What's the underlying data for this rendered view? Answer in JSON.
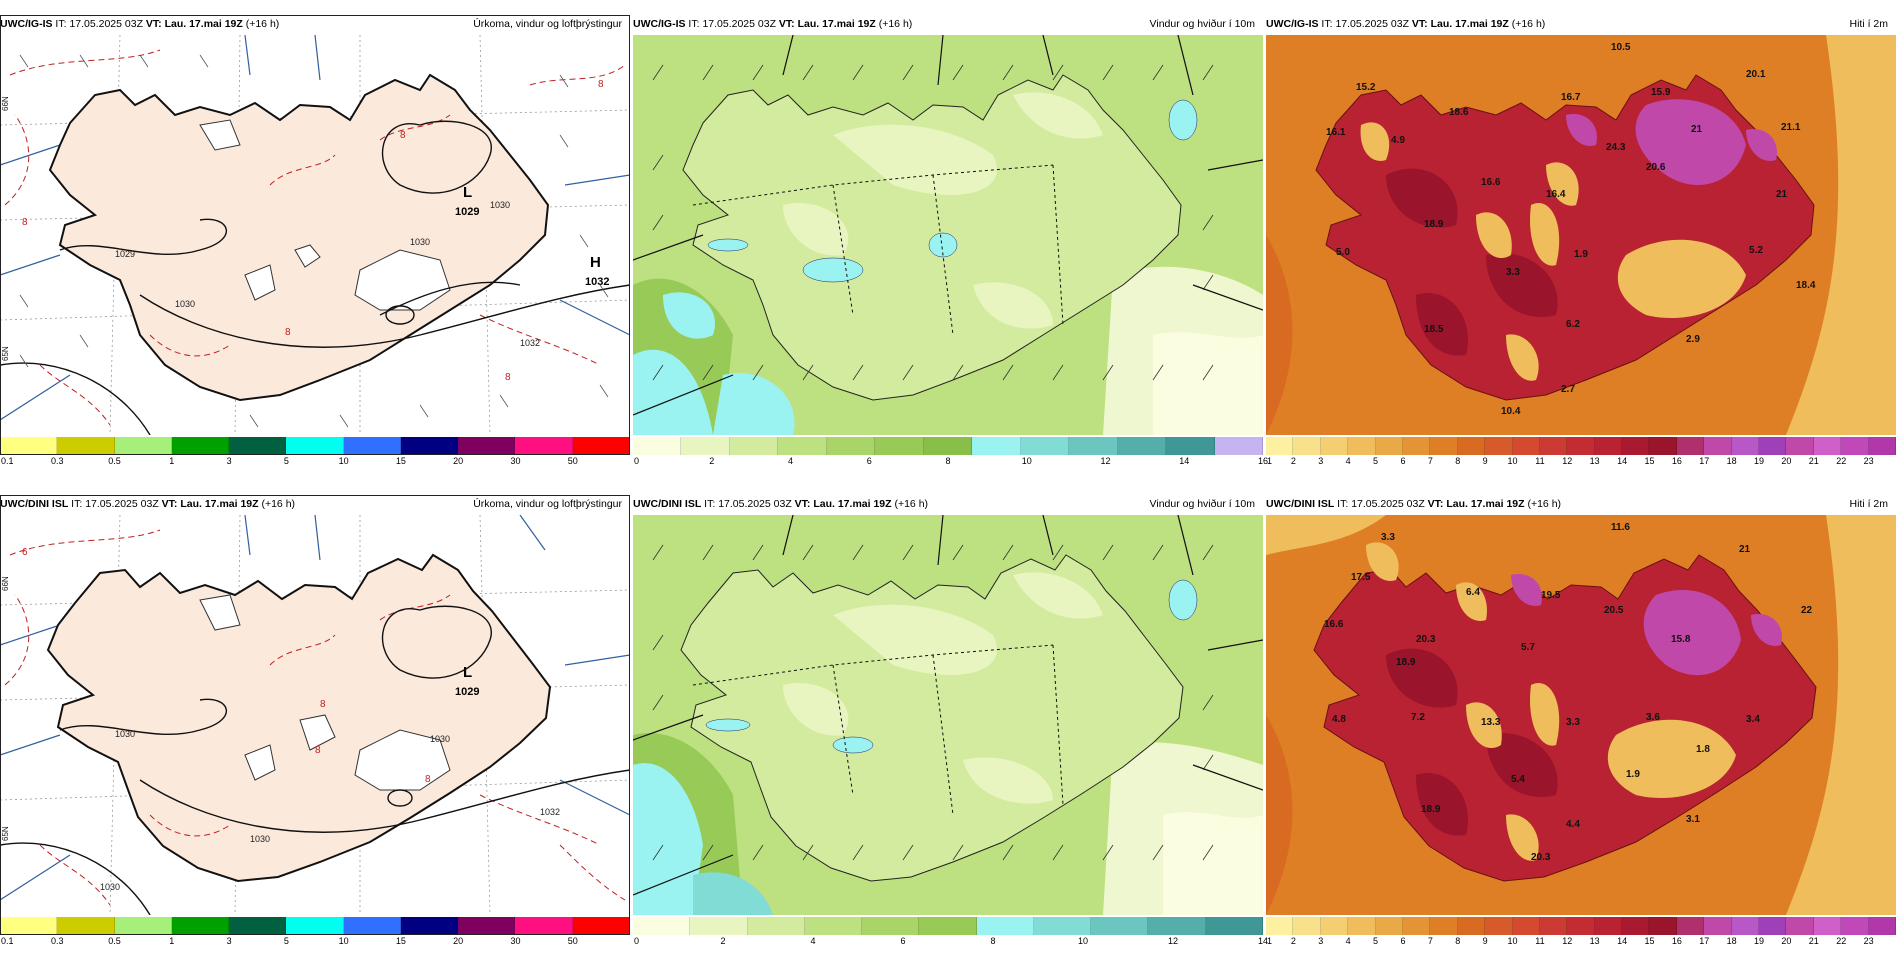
{
  "panels": [
    {
      "model": "UWC/IG-IS",
      "it_label": "IT:",
      "init_time": "17.05.2025 03Z",
      "vt_label": "VT:",
      "valid_time": "Lau. 17.mai 19Z",
      "lead": "(+16 h)",
      "field_label": "Úrkoma, vindur og loftþrýstingur",
      "map": {
        "low": {
          "symbol": "L",
          "value": "1029"
        },
        "high": {
          "symbol": "H",
          "value": "1032"
        },
        "isobars": [
          "1030",
          "1030",
          "1029",
          "1032",
          "1030"
        ],
        "precip_labels": [
          "8",
          "8",
          "8",
          "8",
          "8"
        ]
      },
      "colorbar": {
        "colors": [
          "#ffff80",
          "#cccc00",
          "#a6f07a",
          "#00a000",
          "#006040",
          "#00ffee",
          "#3070ff",
          "#000080",
          "#800060",
          "#ff1080",
          "#ff0000"
        ],
        "ticks": [
          "0.1",
          "0.3",
          "0.5",
          "1",
          "3",
          "5",
          "10",
          "15",
          "20",
          "30",
          "50"
        ]
      }
    },
    {
      "model": "UWC/IG-IS",
      "it_label": "IT:",
      "init_time": "17.05.2025 03Z",
      "vt_label": "VT:",
      "valid_time": "Lau. 17.mai 19Z",
      "lead": "(+16 h)",
      "field_label": "Vindur og hviður í 10m",
      "colorbar": {
        "colors": [
          "#fbfde0",
          "#e8f5c0",
          "#d2eb9e",
          "#bde080",
          "#a8d468",
          "#98ca58",
          "#88bf48",
          "#9af3f0",
          "#82dcd6",
          "#6cc6c0",
          "#55aeaa",
          "#3f9896",
          "#c6b4f2"
        ],
        "ticks": [
          "0",
          "2",
          "4",
          "6",
          "8",
          "10",
          "12",
          "14",
          "16"
        ]
      }
    },
    {
      "model": "UWC/IG-IS",
      "it_label": "IT:",
      "init_time": "17.05.2025 03Z",
      "vt_label": "VT:",
      "valid_time": "Lau. 17.mai 19Z",
      "lead": "(+16 h)",
      "field_label": "Hiti í 2m",
      "temps": [
        "10.5",
        "15.2",
        "18.6",
        "16.7",
        "15.9",
        "20.1",
        "16.1",
        "4.9",
        "16.6",
        "24.3",
        "21",
        "21.1",
        "20.6",
        "16.4",
        "21",
        "18.9",
        "5.0",
        "3.3",
        "1.9",
        "5.2",
        "18.4",
        "18.5",
        "6.2",
        "2.9",
        "10.4",
        "2.7"
      ],
      "colorbar": {
        "colors": [
          "#fdf0a0",
          "#f9e08a",
          "#f4cf72",
          "#efbd5c",
          "#e9a947",
          "#e49434",
          "#de7f26",
          "#d96a22",
          "#d75a2a",
          "#d34a30",
          "#cc3a34",
          "#c42c34",
          "#b82232",
          "#a81a30",
          "#9a142c",
          "#b0306e",
          "#c048a8",
          "#b858c8",
          "#a040b8",
          "#c048a8",
          "#d060c8",
          "#c048b8",
          "#b038a8"
        ],
        "ticks": [
          "1",
          "2",
          "3",
          "4",
          "5",
          "6",
          "7",
          "8",
          "9",
          "10",
          "11",
          "12",
          "13",
          "14",
          "15",
          "16",
          "17",
          "18",
          "19",
          "20",
          "21",
          "22",
          "23"
        ]
      }
    },
    {
      "model": "UWC/DINI ISL",
      "it_label": "IT:",
      "init_time": "17.05.2025 03Z",
      "vt_label": "VT:",
      "valid_time": "Lau. 17.mai 19Z",
      "lead": "(+16 h)",
      "field_label": "Úrkoma, vindur og loftþrýstingur",
      "map": {
        "low": {
          "symbol": "L",
          "value": "1029"
        },
        "isobars": [
          "1030",
          "1030",
          "1032",
          "1030",
          "1030"
        ],
        "precip_labels": [
          "8",
          "8",
          "8",
          "6"
        ]
      },
      "colorbar": {
        "colors": [
          "#ffff80",
          "#cccc00",
          "#a6f07a",
          "#00a000",
          "#006040",
          "#00ffee",
          "#3070ff",
          "#000080",
          "#800060",
          "#ff1080",
          "#ff0000"
        ],
        "ticks": [
          "0.1",
          "0.3",
          "0.5",
          "1",
          "3",
          "5",
          "10",
          "15",
          "20",
          "30",
          "50"
        ]
      }
    },
    {
      "model": "UWC/DINI ISL",
      "it_label": "IT:",
      "init_time": "17.05.2025 03Z",
      "vt_label": "VT:",
      "valid_time": "Lau. 17.mai 19Z",
      "lead": "(+16 h)",
      "field_label": "Vindur og hviður í 10m",
      "colorbar": {
        "colors": [
          "#fbfde0",
          "#e8f5c0",
          "#d2eb9e",
          "#bde080",
          "#a8d468",
          "#98ca58",
          "#9af3f0",
          "#82dcd6",
          "#6cc6c0",
          "#55aeaa",
          "#3f9896"
        ],
        "ticks": [
          "0",
          "2",
          "4",
          "6",
          "8",
          "10",
          "12",
          "14"
        ]
      }
    },
    {
      "model": "UWC/DINI ISL",
      "it_label": "IT:",
      "init_time": "17.05.2025 03Z",
      "vt_label": "VT:",
      "valid_time": "Lau. 17.mai 19Z",
      "lead": "(+16 h)",
      "field_label": "Hiti í 2m",
      "temps": [
        "11.6",
        "3.3",
        "21",
        "17.5",
        "6.4",
        "19.5",
        "20.5",
        "16.6",
        "20.3",
        "5.7",
        "15.8",
        "22",
        "18.9",
        "4.8",
        "7.2",
        "13.3",
        "3.3",
        "3.6",
        "1.8",
        "1.9",
        "3.4",
        "5.4",
        "4.4",
        "18.9",
        "3.1",
        "20.3"
      ],
      "colorbar": {
        "colors": [
          "#fdf0a0",
          "#f9e08a",
          "#f4cf72",
          "#efbd5c",
          "#e9a947",
          "#e49434",
          "#de7f26",
          "#d96a22",
          "#d75a2a",
          "#d34a30",
          "#cc3a34",
          "#c42c34",
          "#b82232",
          "#a81a30",
          "#9a142c",
          "#b0306e",
          "#c048a8",
          "#b858c8",
          "#a040b8",
          "#c048a8",
          "#d060c8",
          "#c048b8",
          "#b038a8"
        ],
        "ticks": [
          "1",
          "2",
          "3",
          "4",
          "5",
          "6",
          "7",
          "8",
          "9",
          "10",
          "11",
          "12",
          "13",
          "14",
          "15",
          "16",
          "17",
          "18",
          "19",
          "20",
          "21",
          "22",
          "23"
        ]
      }
    }
  ],
  "lat_labels": [
    "66N",
    "65N",
    "64N"
  ]
}
